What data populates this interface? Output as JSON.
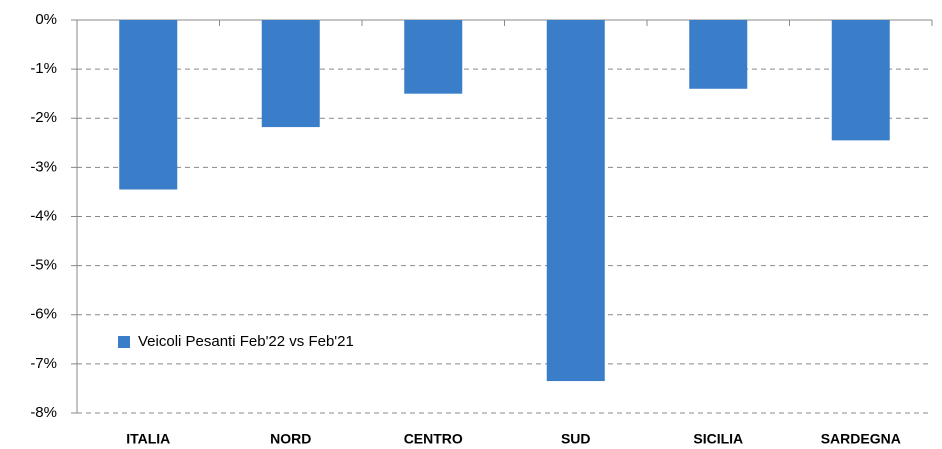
{
  "chart_data": {
    "type": "bar",
    "categories": [
      "ITALIA",
      "NORD",
      "CENTRO",
      "SUD",
      "SICILIA",
      "SARDEGNA"
    ],
    "series": [
      {
        "name": "Veicoli Pesanti Feb'22 vs Feb'21",
        "color": "#3a7dc9",
        "values": [
          -3.45,
          -2.18,
          -1.5,
          -7.35,
          -1.4,
          -2.45
        ]
      }
    ],
    "ylim": [
      -8,
      0
    ],
    "yticks": [
      {
        "value": 0,
        "label": "0%"
      },
      {
        "value": -1,
        "label": "-1%"
      },
      {
        "value": -2,
        "label": "-2%"
      },
      {
        "value": -3,
        "label": "-3%"
      },
      {
        "value": -4,
        "label": "-4%"
      },
      {
        "value": -5,
        "label": "-5%"
      },
      {
        "value": -6,
        "label": "-6%"
      },
      {
        "value": -7,
        "label": "-7%"
      },
      {
        "value": -8,
        "label": "-8%"
      }
    ],
    "grid": true,
    "legend": "left"
  }
}
